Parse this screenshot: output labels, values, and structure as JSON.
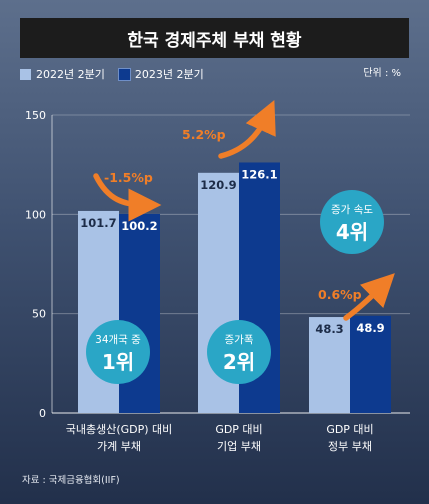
{
  "title": "한국 경제주체 부채 현황",
  "unit": "단위 : %",
  "source": "자료 : 국제금융협회(IIF)",
  "colors": {
    "series_2022": "#a9c2e6",
    "series_2023": "#0d3a8f",
    "badge": "#2aa6c6",
    "arrow": "#f07e28"
  },
  "chart_data": {
    "type": "bar",
    "categories": [
      [
        "국내총생산(GDP) 대비",
        "가계 부채"
      ],
      [
        "GDP 대비",
        "기업 부채"
      ],
      [
        "GDP 대비",
        "정부 부채"
      ]
    ],
    "series": [
      {
        "name": "2022년 2분기",
        "values": [
          101.7,
          120.9,
          48.3
        ],
        "value_labels": [
          "101.7",
          "120.9",
          "48.3"
        ]
      },
      {
        "name": "2023년 2분기",
        "values": [
          100.2,
          126.1,
          48.9
        ],
        "value_labels": [
          "100.2",
          "126.1",
          "48.9"
        ]
      }
    ],
    "ylim": [
      0,
      150
    ],
    "yticks": [
      "0",
      "50",
      "100",
      "150"
    ],
    "ytick_values": [
      0,
      50,
      100,
      150
    ],
    "changes": [
      {
        "text": "-1.5%p",
        "direction": "down"
      },
      {
        "text": "5.2%p",
        "direction": "up"
      },
      {
        "text": "0.6%p",
        "direction": "up"
      }
    ],
    "badges": [
      {
        "top": "34개국 중",
        "main": "1위"
      },
      {
        "top": "증가폭",
        "main": "2위"
      },
      {
        "top": "증가 속도",
        "main": "4위"
      }
    ],
    "grid": true,
    "legend_position": "top-left"
  }
}
